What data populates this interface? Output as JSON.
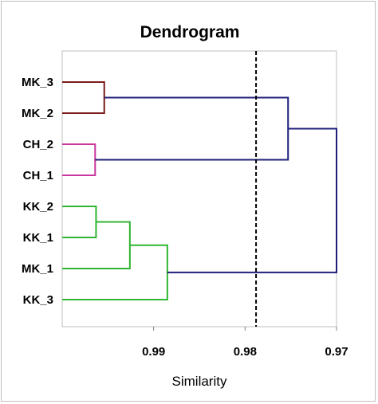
{
  "chart_data": {
    "type": "dendrogram",
    "title": "Dendrogram",
    "xlabel": "Similarity",
    "xlim": [
      1.0,
      0.97
    ],
    "x_reversed": true,
    "xticks": [
      {
        "value": 0.99,
        "label": "0.99"
      },
      {
        "value": 0.98,
        "label": "0.98"
      },
      {
        "value": 0.97,
        "label": "0.97"
      }
    ],
    "leaves": [
      "MK_3",
      "MK_2",
      "CH_2",
      "CH_1",
      "KK_2",
      "KK_1",
      "MK_1",
      "KK_3"
    ],
    "cut_line": 0.9788,
    "colors": {
      "MK": "#7b1b1b",
      "CH": "#c8369e",
      "KK": "#2fb52f",
      "join": "#1f1f7a",
      "cut": "#000000"
    },
    "merges": [
      {
        "a": "MK_3",
        "b": "MK_2",
        "similarity": 0.9954,
        "color": "MK",
        "id": "m1"
      },
      {
        "a": "CH_2",
        "b": "CH_1",
        "similarity": 0.9964,
        "color": "CH",
        "id": "m2"
      },
      {
        "a": "KK_2",
        "b": "KK_1",
        "similarity": 0.9963,
        "color": "KK",
        "id": "m3"
      },
      {
        "a": "m3",
        "b": "MK_1",
        "similarity": 0.9926,
        "color": "KK",
        "id": "m4"
      },
      {
        "a": "m4",
        "b": "KK_3",
        "similarity": 0.9885,
        "color": "KK",
        "id": "m5"
      },
      {
        "a": "m1",
        "b": "m2",
        "similarity": 0.9753,
        "color": "join",
        "id": "m6"
      },
      {
        "a": "m6",
        "b": "m5",
        "similarity": 0.97,
        "color": "join",
        "id": "m7"
      }
    ]
  }
}
